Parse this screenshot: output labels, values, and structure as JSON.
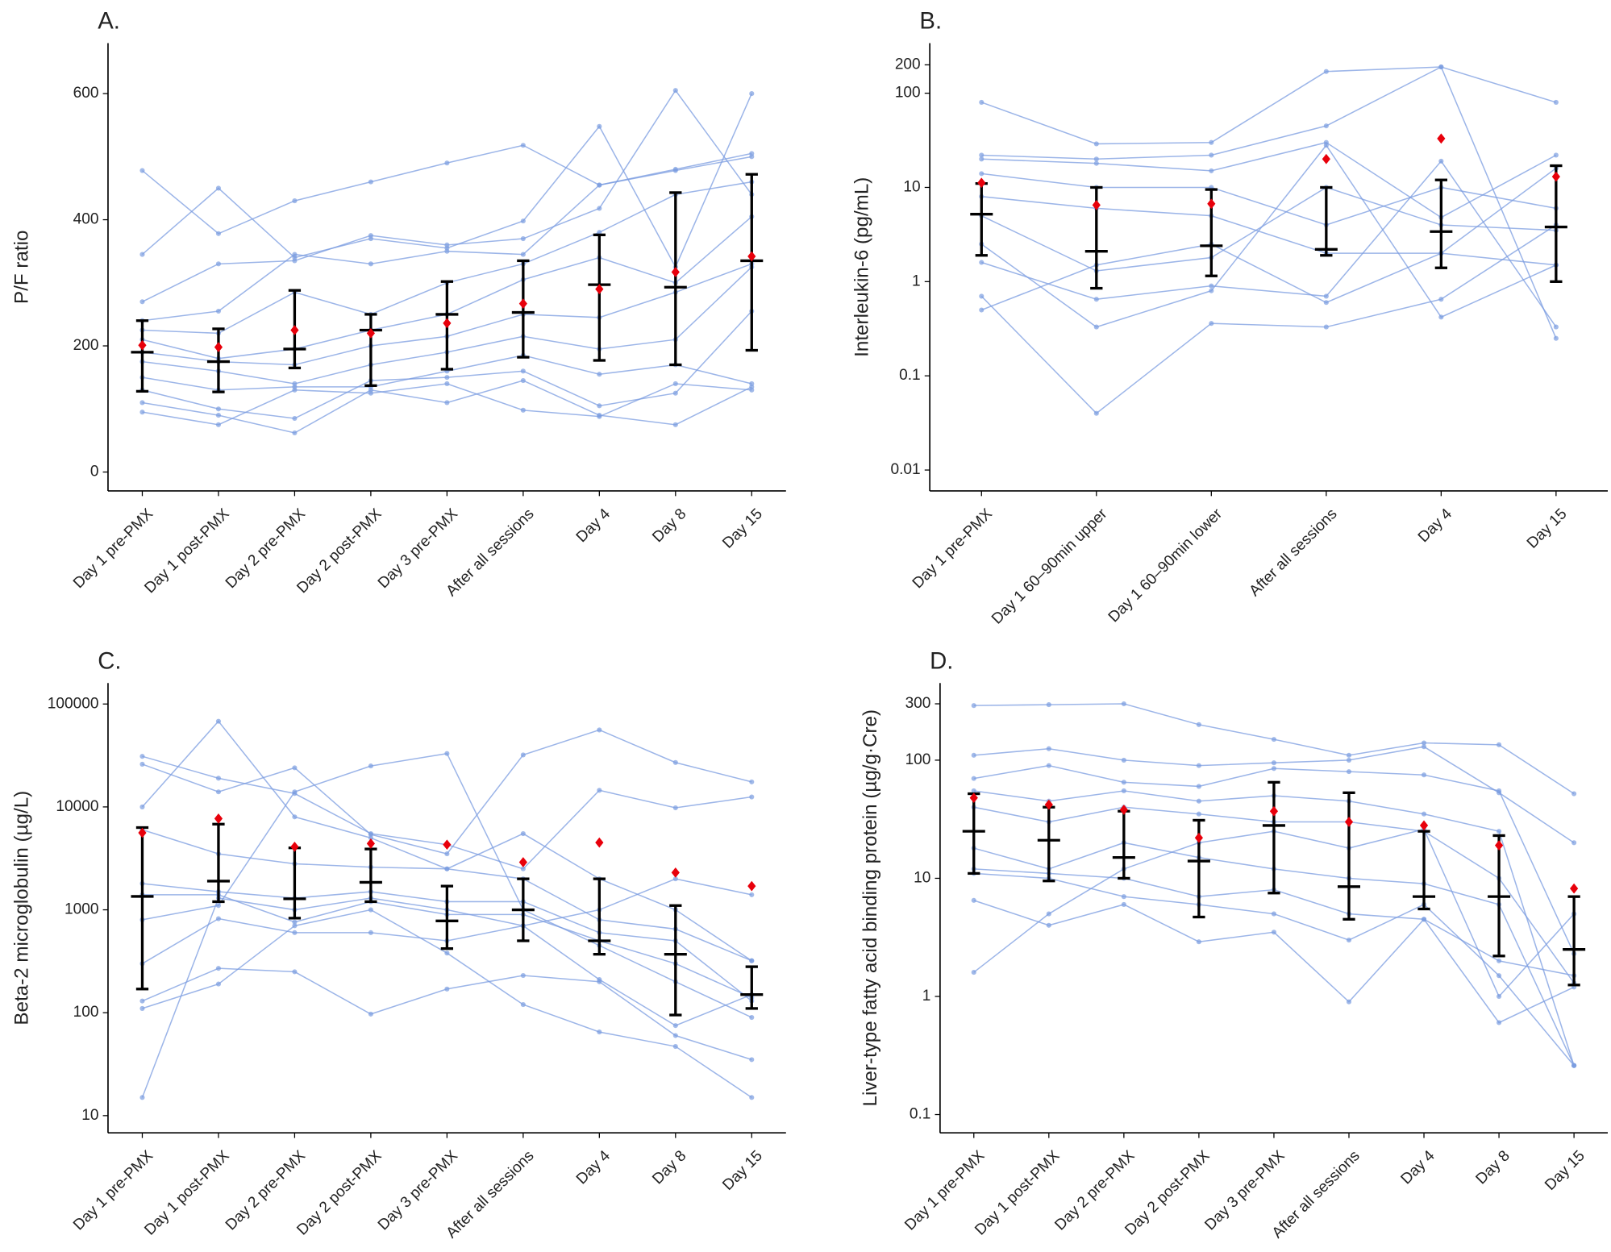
{
  "chart_data": [
    {
      "type": "line",
      "panel_label": "A.",
      "y_label": "P/F ratio",
      "log_scale": false,
      "categories": [
        "Day 1 pre-PMX",
        "Day 1 post-PMX",
        "Day 2 pre-PMX",
        "Day 2 post-PMX",
        "Day 3 pre-PMX",
        "After all sessions",
        "Day 4",
        "Day 8",
        "Day 15"
      ],
      "ylim": [
        -30,
        680
      ],
      "yticks": [
        0,
        200,
        400,
        600
      ],
      "line_color": "#7b9ce0",
      "errorbar_color": "#000000",
      "mean_color": "#e8000b",
      "series": [
        {
          "values": [
            478,
            378,
            430,
            460,
            490,
            518,
            455,
            480,
            505
          ]
        },
        {
          "values": [
            345,
            450,
            340,
            370,
            355,
            398,
            548,
            325,
            600
          ]
        },
        {
          "values": [
            270,
            330,
            335,
            375,
            360,
            370,
            418,
            605,
            440
          ]
        },
        {
          "values": [
            240,
            255,
            345,
            330,
            350,
            345,
            455,
            478,
            500
          ]
        },
        {
          "values": [
            225,
            220,
            285,
            250,
            300,
            330,
            380,
            440,
            460
          ]
        },
        {
          "values": [
            210,
            180,
            195,
            225,
            250,
            305,
            340,
            300,
            405
          ]
        },
        {
          "values": [
            190,
            175,
            170,
            200,
            215,
            250,
            245,
            285,
            330
          ]
        },
        {
          "values": [
            175,
            160,
            140,
            170,
            190,
            215,
            195,
            210,
            325
          ]
        },
        {
          "values": [
            150,
            130,
            135,
            135,
            160,
            185,
            155,
            170,
            140
          ]
        },
        {
          "values": [
            130,
            100,
            85,
            145,
            150,
            160,
            105,
            125,
            255
          ]
        },
        {
          "values": [
            110,
            90,
            62,
            130,
            110,
            145,
            90,
            75,
            135
          ]
        },
        {
          "values": [
            95,
            75,
            130,
            125,
            140,
            98,
            88,
            140,
            130
          ]
        }
      ],
      "median": [
        190,
        175,
        195,
        225,
        250,
        253,
        297,
        293,
        335
      ],
      "q1": [
        128,
        127,
        165,
        137,
        163,
        182,
        177,
        170,
        193
      ],
      "q3": [
        240,
        227,
        288,
        250,
        302,
        335,
        376,
        443,
        472
      ],
      "mean": [
        201,
        198,
        225,
        220,
        236,
        267,
        290,
        317,
        342
      ]
    },
    {
      "type": "line",
      "panel_label": "B.",
      "y_label": "Interleukin-6 (pg/mL)",
      "log_scale": true,
      "categories": [
        "Day 1 pre-PMX",
        "Day 1 60–90min upper",
        "Day 1 60–90min lower",
        "After all sessions",
        "Day 4",
        "Day 15"
      ],
      "ylim": [
        0.006,
        340
      ],
      "yticks": [
        0.01,
        0.1,
        1,
        10,
        100,
        200
      ],
      "line_color": "#7b9ce0",
      "errorbar_color": "#000000",
      "mean_color": "#e8000b",
      "series": [
        {
          "values": [
            80,
            29,
            30,
            170,
            190,
            0.25
          ]
        },
        {
          "values": [
            22,
            20,
            22,
            45,
            190,
            80
          ]
        },
        {
          "values": [
            20,
            18,
            15,
            30,
            4.8,
            22
          ]
        },
        {
          "values": [
            14,
            10,
            10,
            4,
            10,
            6
          ]
        },
        {
          "values": [
            8,
            6,
            5,
            2,
            2,
            16
          ]
        },
        {
          "values": [
            5,
            1.3,
            1.8,
            10,
            4,
            3.5
          ]
        },
        {
          "values": [
            2.5,
            0.33,
            0.8,
            28,
            0.42,
            1.5
          ]
        },
        {
          "values": [
            1.6,
            0.65,
            0.9,
            0.7,
            19,
            0.33
          ]
        },
        {
          "values": [
            0.5,
            1.5,
            2.5,
            0.6,
            2,
            1.5
          ]
        },
        {
          "values": [
            0.7,
            0.04,
            0.36,
            0.33,
            0.65,
            4
          ]
        }
      ],
      "median": [
        5.2,
        2.1,
        2.4,
        2.2,
        3.4,
        3.8
      ],
      "q1": [
        1.9,
        0.85,
        1.15,
        1.9,
        1.4,
        1.0
      ],
      "q3": [
        11,
        10,
        9.5,
        10,
        12,
        17
      ],
      "mean": [
        11.2,
        6.5,
        6.7,
        20,
        33,
        13
      ]
    },
    {
      "type": "line",
      "panel_label": "C.",
      "y_label": "Beta-2 microglobulin (µg/L)",
      "log_scale": true,
      "categories": [
        "Day 1 pre-PMX",
        "Day 1 post-PMX",
        "Day 2 pre-PMX",
        "Day 2 post-PMX",
        "Day 3 pre-PMX",
        "After all sessions",
        "Day 4",
        "Day 8",
        "Day 15"
      ],
      "ylim": [
        6.8,
        160000
      ],
      "yticks": [
        10,
        100,
        1000,
        10000,
        100000
      ],
      "line_color": "#7b9ce0",
      "errorbar_color": "#000000",
      "mean_color": "#e8000b",
      "series": [
        {
          "values": [
            31000,
            19000,
            13500,
            5500,
            4300,
            2500,
            14500,
            9800,
            12500
          ]
        },
        {
          "values": [
            26000,
            14000,
            24000,
            5400,
            3500,
            32000,
            56000,
            27000,
            17500
          ]
        },
        {
          "values": [
            10000,
            68000,
            8000,
            5000,
            2500,
            5500,
            2000,
            1000,
            320
          ]
        },
        {
          "values": [
            6000,
            3500,
            2800,
            2600,
            2500,
            2000,
            800,
            650,
            320
          ]
        },
        {
          "values": [
            1800,
            1500,
            1300,
            1500,
            1200,
            1200,
            600,
            500,
            130
          ]
        },
        {
          "values": [
            1400,
            1400,
            760,
            1200,
            900,
            900,
            500,
            300,
            140
          ]
        },
        {
          "values": [
            800,
            1100,
            14000,
            25000,
            33000,
            1000,
            450,
            200,
            90
          ]
        },
        {
          "values": [
            300,
            820,
            600,
            600,
            500,
            700,
            210,
            75,
            150
          ]
        },
        {
          "values": [
            130,
            270,
            250,
            97,
            170,
            230,
            200,
            60,
            35
          ]
        },
        {
          "values": [
            110,
            190,
            700,
            1000,
            380,
            120,
            65,
            47,
            15
          ]
        },
        {
          "values": [
            15,
            1300,
            1000,
            1300,
            1000,
            700,
            1000,
            2000,
            1400
          ]
        }
      ],
      "median": [
        1350,
        1900,
        1280,
        1850,
        780,
        1000,
        500,
        370,
        150
      ],
      "q1": [
        170,
        1200,
        830,
        1200,
        420,
        500,
        370,
        95,
        110
      ],
      "q3": [
        6300,
        6800,
        4000,
        3900,
        1700,
        2000,
        2000,
        1100,
        280
      ],
      "mean": [
        5600,
        7700,
        4100,
        4400,
        4300,
        2900,
        4500,
        2300,
        1700
      ]
    },
    {
      "type": "line",
      "panel_label": "D.",
      "y_label": "Liver-type fatty acid binding protein (µg/g·Cre)",
      "log_scale": true,
      "categories": [
        "Day 1 pre-PMX",
        "Day 1 post-PMX",
        "Day 2 pre-PMX",
        "Day 2 post-PMX",
        "Day 3 pre-PMX",
        "After all sessions",
        "Day 4",
        "Day 8",
        "Day 15"
      ],
      "ylim": [
        0.07,
        450
      ],
      "yticks": [
        0.1,
        1,
        10,
        100,
        300
      ],
      "line_color": "#7b9ce0",
      "errorbar_color": "#000000",
      "mean_color": "#e8000b",
      "series": [
        {
          "values": [
            290,
            295,
            300,
            200,
            150,
            110,
            140,
            135,
            52
          ]
        },
        {
          "values": [
            110,
            125,
            100,
            90,
            95,
            100,
            130,
            53,
            20
          ]
        },
        {
          "values": [
            70,
            90,
            65,
            60,
            85,
            80,
            75,
            55,
            2.3
          ]
        },
        {
          "values": [
            55,
            45,
            55,
            45,
            50,
            45,
            35,
            25,
            0.26
          ]
        },
        {
          "values": [
            40,
            30,
            40,
            35,
            30,
            30,
            25,
            10,
            1.3
          ]
        },
        {
          "values": [
            18,
            12,
            20,
            15,
            12,
            10,
            9,
            6,
            0.26
          ]
        },
        {
          "values": [
            12,
            11,
            10,
            7,
            8,
            5,
            4.5,
            2,
            1.5
          ]
        },
        {
          "values": [
            11,
            10,
            7,
            6,
            5,
            3,
            6,
            1.5,
            0.26
          ]
        },
        {
          "values": [
            6.5,
            4,
            6,
            2.9,
            3.5,
            0.9,
            4.5,
            0.6,
            1.2
          ]
        },
        {
          "values": [
            1.6,
            5,
            12,
            20,
            25,
            18,
            26,
            1.0,
            5
          ]
        }
      ],
      "median": [
        25,
        21,
        15,
        14,
        28,
        8.5,
        7,
        7,
        2.5
      ],
      "q1": [
        11,
        9.5,
        10,
        4.7,
        7.5,
        4.5,
        5.5,
        2.2,
        1.25
      ],
      "q3": [
        52,
        40,
        37,
        31,
        65,
        53,
        25,
        23,
        7
      ],
      "mean": [
        48,
        42,
        38,
        22,
        37,
        30,
        28,
        19,
        8.2
      ]
    }
  ]
}
